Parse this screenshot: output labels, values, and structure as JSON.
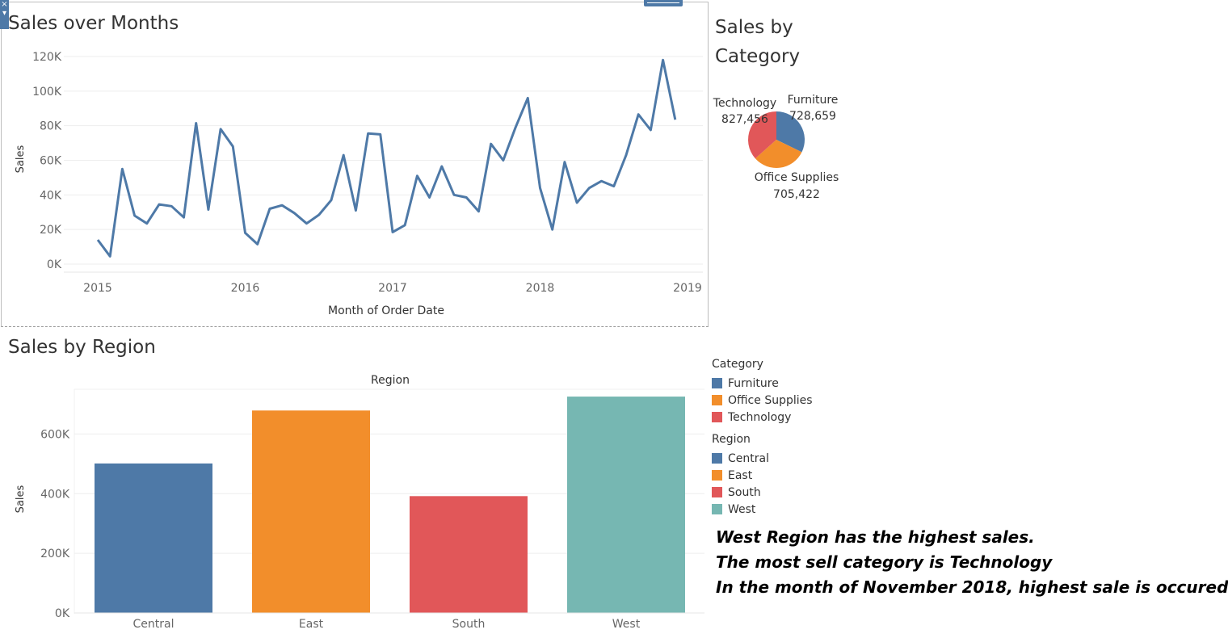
{
  "chart_data": [
    {
      "type": "line",
      "title": "Sales over Months",
      "xlabel": "Month of Order Date",
      "ylabel": "Sales",
      "x_ticks": [
        "2015",
        "2016",
        "2017",
        "2018",
        "2019"
      ],
      "y_ticks": [
        "0K",
        "20K",
        "40K",
        "60K",
        "80K",
        "100K",
        "120K"
      ],
      "ylim": [
        0,
        120000
      ],
      "grid": true,
      "series": [
        {
          "color": "#4e79a7",
          "x": [
            "2015-01",
            "2015-02",
            "2015-03",
            "2015-04",
            "2015-05",
            "2015-06",
            "2015-07",
            "2015-08",
            "2015-09",
            "2015-10",
            "2015-11",
            "2015-12",
            "2016-01",
            "2016-02",
            "2016-03",
            "2016-04",
            "2016-05",
            "2016-06",
            "2016-07",
            "2016-08",
            "2016-09",
            "2016-10",
            "2016-11",
            "2016-12",
            "2017-01",
            "2017-02",
            "2017-03",
            "2017-04",
            "2017-05",
            "2017-06",
            "2017-07",
            "2017-08",
            "2017-09",
            "2017-10",
            "2017-11",
            "2017-12",
            "2018-01",
            "2018-02",
            "2018-03",
            "2018-04",
            "2018-05",
            "2018-06",
            "2018-07",
            "2018-08",
            "2018-09",
            "2018-10",
            "2018-11",
            "2018-12"
          ],
          "values": [
            14000,
            4500,
            55000,
            28000,
            23500,
            34500,
            33500,
            27000,
            81500,
            31500,
            78000,
            68000,
            18000,
            11500,
            32000,
            34000,
            29500,
            23500,
            28500,
            37000,
            63000,
            31000,
            75500,
            75000,
            18500,
            22500,
            51000,
            38500,
            56500,
            40000,
            38500,
            30500,
            69500,
            60000,
            79000,
            96000,
            44000,
            20000,
            59000,
            35500,
            44000,
            48000,
            45000,
            63000,
            86500,
            77500,
            118000,
            83500
          ]
        }
      ]
    },
    {
      "type": "pie",
      "title": "Sales by Category",
      "slices": [
        {
          "label": "Furniture",
          "value": 728659,
          "value_text": "728,659",
          "color": "#4e79a7"
        },
        {
          "label": "Office Supplies",
          "value": 705422,
          "value_text": "705,422",
          "color": "#f28e2b"
        },
        {
          "label": "Technology",
          "value": 827456,
          "value_text": "827,456",
          "color": "#e15759"
        }
      ]
    },
    {
      "type": "bar",
      "title": "Sales by Region",
      "header": "Region",
      "ylabel": "Sales",
      "categories": [
        "Central",
        "East",
        "South",
        "West"
      ],
      "values": [
        501240,
        678781,
        391722,
        725458
      ],
      "colors": [
        "#4e79a7",
        "#f28e2b",
        "#e15759",
        "#76b7b2"
      ],
      "y_ticks": [
        "0K",
        "200K",
        "400K",
        "600K"
      ],
      "ylim": [
        0,
        750000
      ],
      "grid": true
    }
  ],
  "legends": {
    "category": {
      "title": "Category",
      "items": [
        {
          "label": "Furniture",
          "color": "#4e79a7"
        },
        {
          "label": "Office Supplies",
          "color": "#f28e2b"
        },
        {
          "label": "Technology",
          "color": "#e15759"
        }
      ]
    },
    "region": {
      "title": "Region",
      "items": [
        {
          "label": "Central",
          "color": "#4e79a7"
        },
        {
          "label": "East",
          "color": "#f28e2b"
        },
        {
          "label": "South",
          "color": "#e15759"
        },
        {
          "label": "West",
          "color": "#76b7b2"
        }
      ]
    }
  },
  "notes": [
    "West Region has the highest sales.",
    "The most sell category is Technology",
    "In the month of November 2018, highest sale is occured"
  ],
  "controls": {
    "close_glyph": "×",
    "menu_glyph": "▾"
  }
}
